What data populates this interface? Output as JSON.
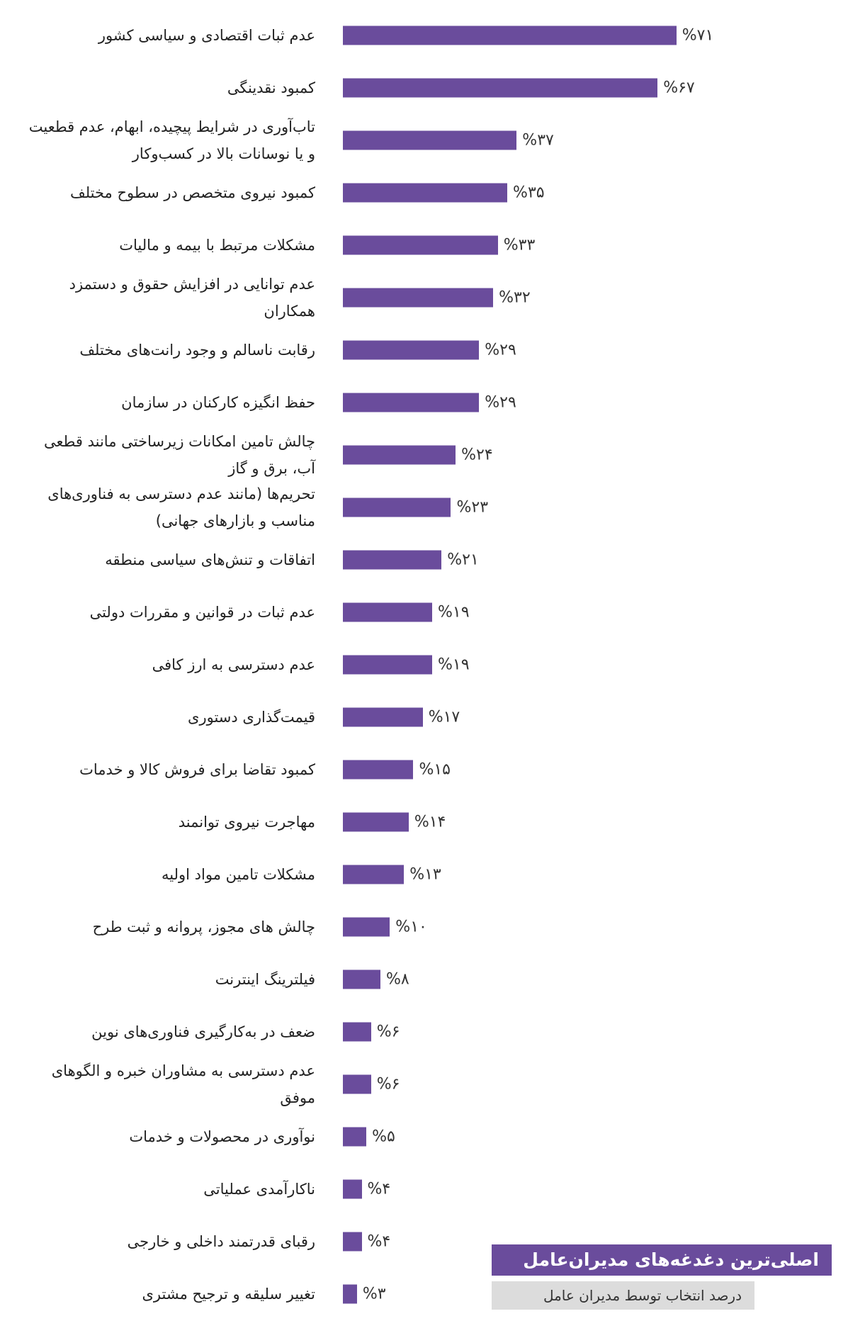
{
  "chart_data": {
    "type": "bar",
    "orientation": "horizontal",
    "title": "اصلی‌ترین دغدغه‌های مدیران‌عامل",
    "subtitle": "درصد انتخاب توسط مدیران عامل",
    "color": "#6a4c9c",
    "categories": [
      "عدم ثبات اقتصادی و سیاسی کشور",
      "کمبود نقدینگی",
      "تاب‌آوری در شرایط پیچیده، ابهام، عدم قطعیت و یا نوسانات بالا در کسب‌وکار",
      "کمبود نیروی متخصص در سطوح مختلف",
      "مشکلات مرتبط با بیمه و مالیات",
      "عدم توانایی در افزایش حقوق و دستمزد همکاران",
      "رقابت ناسالم و وجود رانت‌های مختلف",
      "حفظ انگیزه کارکنان در سازمان",
      "چالش تامین امکانات زیرساختی مانند قطعی آب، برق و گاز",
      "تحریم‌ها (مانند عدم دسترسی به فناوری‌های مناسب و بازارهای جهانی)",
      "اتفاقات و تنش‌های سیاسی منطقه",
      "عدم ثبات در قوانین و مقررات دولتی",
      "عدم دسترسی به ارز کافی",
      "قیمت‌گذاری دستوری",
      "کمبود تقاضا برای فروش کالا و خدمات",
      "مهاجرت نیروی توانمند",
      "مشکلات تامین مواد اولیه",
      "چالش های مجوز، پروانه و ثبت طرح",
      "فیلترینگ اینترنت",
      "ضعف در به‌کارگیری فناوری‌های نوین",
      "عدم دسترسی به مشاوران خبره و الگوهای موفق",
      "نوآوری در محصولات و خدمات",
      "ناکارآمدی عملیاتی",
      "رقبای قدرتمند داخلی و خارجی",
      "تغییر سلیقه و ترجیح مشتری"
    ],
    "values": [
      71,
      67,
      37,
      35,
      33,
      32,
      29,
      29,
      24,
      23,
      21,
      19,
      19,
      17,
      15,
      14,
      13,
      10,
      8,
      6,
      6,
      5,
      4,
      4,
      3
    ],
    "value_labels": [
      "%۷۱",
      "%۶۷",
      "%۳۷",
      "%۳۵",
      "%۳۳",
      "%۳۲",
      "%۲۹",
      "%۲۹",
      "%۲۴",
      "%۲۳",
      "%۲۱",
      "%۱۹",
      "%۱۹",
      "%۱۷",
      "%۱۵",
      "%۱۴",
      "%۱۳",
      "%۱۰",
      "%۸",
      "%۶",
      "%۶",
      "%۵",
      "%۴",
      "%۴",
      "%۳"
    ]
  }
}
